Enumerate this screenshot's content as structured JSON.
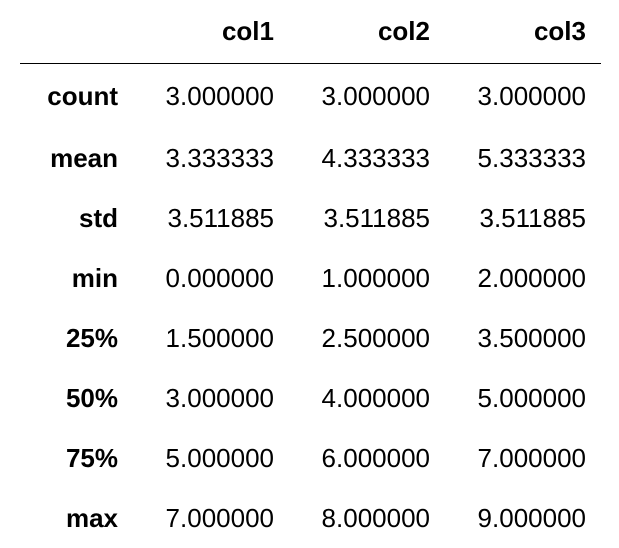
{
  "table": {
    "columns": [
      "col1",
      "col2",
      "col3"
    ],
    "rows": [
      {
        "label": "count",
        "values": [
          "3.000000",
          "3.000000",
          "3.000000"
        ]
      },
      {
        "label": "mean",
        "values": [
          "3.333333",
          "4.333333",
          "5.333333"
        ]
      },
      {
        "label": "std",
        "values": [
          "3.511885",
          "3.511885",
          "3.511885"
        ]
      },
      {
        "label": "min",
        "values": [
          "0.000000",
          "1.000000",
          "2.000000"
        ]
      },
      {
        "label": "25%",
        "values": [
          "1.500000",
          "2.500000",
          "3.500000"
        ]
      },
      {
        "label": "50%",
        "values": [
          "3.000000",
          "4.000000",
          "5.000000"
        ]
      },
      {
        "label": "75%",
        "values": [
          "5.000000",
          "6.000000",
          "7.000000"
        ]
      },
      {
        "label": "max",
        "values": [
          "7.000000",
          "8.000000",
          "9.000000"
        ]
      }
    ]
  }
}
